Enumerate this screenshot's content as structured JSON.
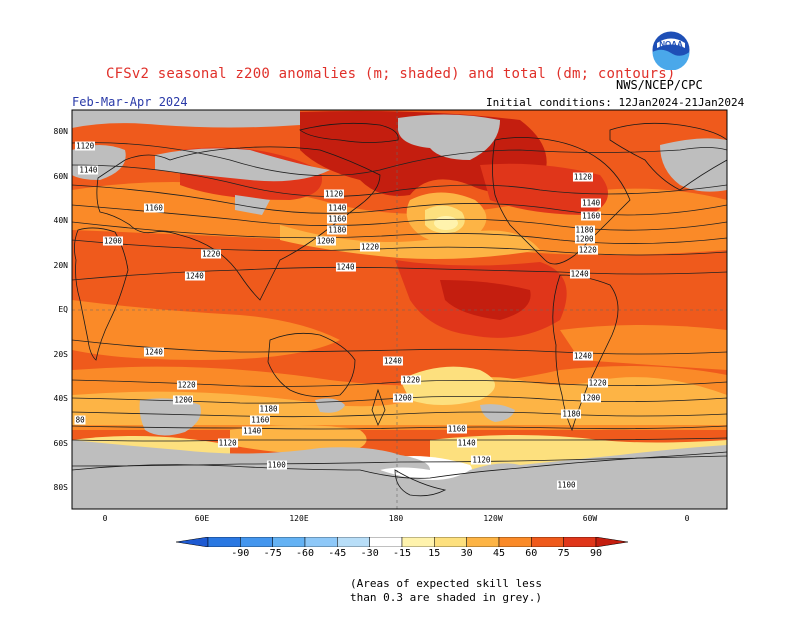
{
  "header": {
    "title": "CFSv2 seasonal z200 anomalies (m; shaded) and total (dm; contours)",
    "agency": "NWS/NCEP/CPC",
    "period": "Feb-Mar-Apr 2024",
    "initial_conditions_label": "Initial conditions:",
    "initial_conditions_range": "12Jan2024-21Jan2024",
    "logo_text": "NOAA"
  },
  "axes": {
    "lat_labels": [
      "80N",
      "60N",
      "40N",
      "20N",
      "EQ",
      "20S",
      "40S",
      "60S",
      "80S"
    ],
    "lon_labels": [
      "0",
      "60E",
      "120E",
      "180",
      "120W",
      "60W",
      "0"
    ]
  },
  "map": {
    "projection": "cylindrical equidistant",
    "lon_range": [
      -20,
      380
    ],
    "lat_range": [
      -90,
      90
    ],
    "grid": "dashed lines at 180 and equator",
    "grey_meaning": "low skill",
    "colors": {
      "ocean_base": "#ef5a1c",
      "light_orange": "#fa8a28",
      "pale_orange": "#fdb445",
      "yellow": "#fde07e",
      "light_yellow": "#fff3ad",
      "red": "#e0361a",
      "dark_red": "#c41e0f",
      "grey": "#bebebe",
      "white": "#ffffff",
      "coast": "#1a1a1a",
      "contour": "#222222"
    }
  },
  "contour_labels": [
    {
      "text": "1120",
      "lon": -12,
      "lat": 74
    },
    {
      "text": "1140",
      "lon": -10,
      "lat": 63
    },
    {
      "text": "1160",
      "lon": 30,
      "lat": 46
    },
    {
      "text": "1200",
      "lon": 5,
      "lat": 31
    },
    {
      "text": "1220",
      "lon": 65,
      "lat": 25
    },
    {
      "text": "1240",
      "lon": 55,
      "lat": 15
    },
    {
      "text": "1120",
      "lon": 140,
      "lat": 52
    },
    {
      "text": "1140",
      "lon": 142,
      "lat": 46
    },
    {
      "text": "1160",
      "lon": 142,
      "lat": 41
    },
    {
      "text": "1180",
      "lon": 142,
      "lat": 36
    },
    {
      "text": "1200",
      "lon": 135,
      "lat": 31
    },
    {
      "text": "1220",
      "lon": 162,
      "lat": 28
    },
    {
      "text": "1240",
      "lon": 147,
      "lat": 19
    },
    {
      "text": "1120",
      "lon": 292,
      "lat": 60
    },
    {
      "text": "1140",
      "lon": 297,
      "lat": 48
    },
    {
      "text": "1160",
      "lon": 297,
      "lat": 42
    },
    {
      "text": "1180",
      "lon": 293,
      "lat": 36
    },
    {
      "text": "1200",
      "lon": 293,
      "lat": 32
    },
    {
      "text": "1220",
      "lon": 295,
      "lat": 27
    },
    {
      "text": "1240",
      "lon": 290,
      "lat": 16
    },
    {
      "text": "1240",
      "lon": 30,
      "lat": -19
    },
    {
      "text": "1220",
      "lon": 50,
      "lat": -34
    },
    {
      "text": "1200",
      "lon": 48,
      "lat": -41
    },
    {
      "text": "1180",
      "lon": 100,
      "lat": -45
    },
    {
      "text": "1160",
      "lon": 95,
      "lat": -50
    },
    {
      "text": "1140",
      "lon": 90,
      "lat": -55
    },
    {
      "text": "1120",
      "lon": 75,
      "lat": -60
    },
    {
      "text": "1100",
      "lon": 105,
      "lat": -70
    },
    {
      "text": "80",
      "lon": -15,
      "lat": -50
    },
    {
      "text": "1240",
      "lon": 176,
      "lat": -23
    },
    {
      "text": "1220",
      "lon": 187,
      "lat": -32
    },
    {
      "text": "1200",
      "lon": 182,
      "lat": -40
    },
    {
      "text": "1160",
      "lon": 215,
      "lat": -54
    },
    {
      "text": "1140",
      "lon": 221,
      "lat": -60
    },
    {
      "text": "1120",
      "lon": 230,
      "lat": -68
    },
    {
      "text": "1100",
      "lon": 282,
      "lat": -79
    },
    {
      "text": "1240",
      "lon": 292,
      "lat": -21
    },
    {
      "text": "1220",
      "lon": 301,
      "lat": -33
    },
    {
      "text": "1200",
      "lon": 297,
      "lat": -40
    },
    {
      "text": "1180",
      "lon": 285,
      "lat": -47
    }
  ],
  "colorbar": {
    "ticks": [
      "-90",
      "-75",
      "-60",
      "-45",
      "-30",
      "-15",
      "15",
      "30",
      "45",
      "60",
      "75",
      "90"
    ],
    "colors": [
      "#1e5ad2",
      "#2a78e2",
      "#4496ee",
      "#64b2f4",
      "#8ec8f8",
      "#b8def8",
      "#ffffff",
      "#fff3ad",
      "#fde07e",
      "#fdb445",
      "#fa8a28",
      "#ef5a1c",
      "#e0361a",
      "#c41e0f"
    ]
  },
  "note": {
    "line1": "(Areas of expected skill less",
    "line2": "than 0.3 are shaded in grey.)"
  }
}
